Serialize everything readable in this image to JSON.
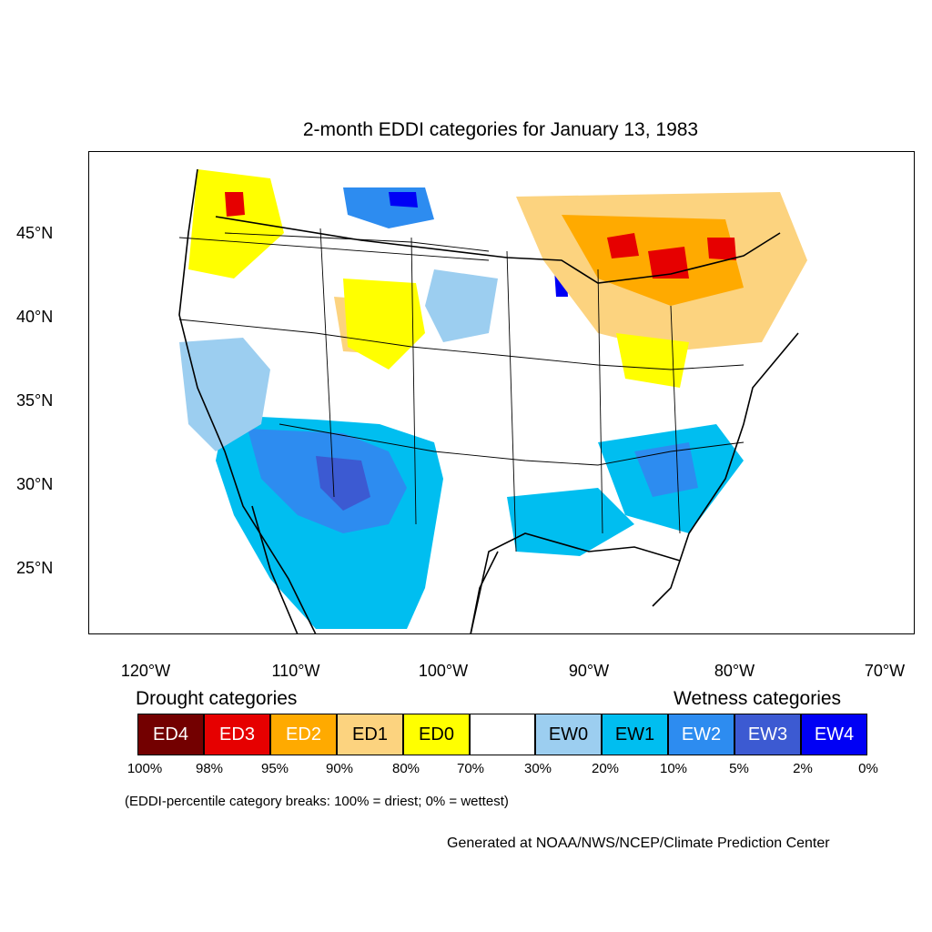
{
  "title": "2-month EDDI categories for January 13, 1983",
  "lat_labels": [
    "45°N",
    "40°N",
    "35°N",
    "30°N",
    "25°N"
  ],
  "lon_labels": [
    "120°W",
    "110°W",
    "100°W",
    "90°W",
    "80°W",
    "70°W"
  ],
  "legend": {
    "drought_heading": "Drought categories",
    "wetness_heading": "Wetness categories",
    "categories": [
      {
        "label": "ED4",
        "color": "#730000",
        "text_color": "#ffffff"
      },
      {
        "label": "ED3",
        "color": "#e60000",
        "text_color": "#ffffff"
      },
      {
        "label": "ED2",
        "color": "#ffaa00",
        "text_color": "#ffffff"
      },
      {
        "label": "ED1",
        "color": "#fcd37f",
        "text_color": "#000000"
      },
      {
        "label": "ED0",
        "color": "#ffff00",
        "text_color": "#000000"
      },
      {
        "label": "",
        "color": "#ffffff",
        "text_color": "#000000"
      },
      {
        "label": "EW0",
        "color": "#9ccef0",
        "text_color": "#000000"
      },
      {
        "label": "EW1",
        "color": "#00bef0",
        "text_color": "#000000"
      },
      {
        "label": "EW2",
        "color": "#2d8cf0",
        "text_color": "#ffffff"
      },
      {
        "label": "EW3",
        "color": "#3c5ad2",
        "text_color": "#ffffff"
      },
      {
        "label": "EW4",
        "color": "#0000f5",
        "text_color": "#ffffff"
      }
    ],
    "percent_breaks": [
      "100%",
      "98%",
      "95%",
      "90%",
      "80%",
      "70%",
      "30%",
      "20%",
      "10%",
      "5%",
      "2%",
      "0%"
    ]
  },
  "note": "(EDDI-percentile category breaks: 100% = driest; 0% = wettest)",
  "credit": "Generated at NOAA/NWS/NCEP/Climate Prediction Center"
}
